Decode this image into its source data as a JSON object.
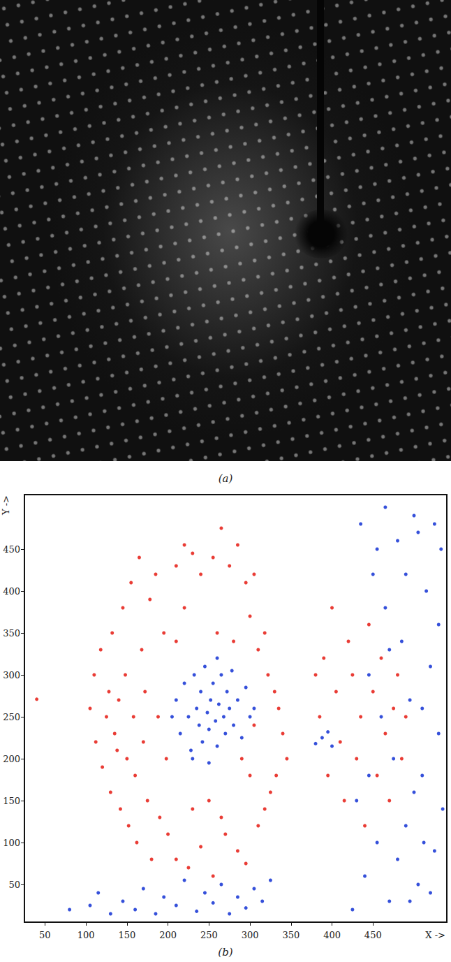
{
  "image_panel": {
    "caption": "(a)"
  },
  "chart_data": {
    "type": "scatter",
    "caption": "(b)",
    "x_label": "X ->",
    "y_label": "Y ->",
    "xlim": [
      25,
      540
    ],
    "ylim": [
      5,
      515
    ],
    "xticks": [
      50,
      100,
      150,
      200,
      250,
      300,
      350,
      400,
      450
    ],
    "yticks": [
      50,
      100,
      150,
      200,
      250,
      300,
      350,
      400,
      450
    ],
    "grid": false,
    "series": [
      {
        "color": "#e8322a",
        "marker": "circle",
        "x": [
          105,
          110,
          112,
          118,
          120,
          125,
          128,
          130,
          132,
          135,
          138,
          140,
          142,
          145,
          148,
          150,
          152,
          155,
          158,
          160,
          162,
          165,
          168,
          170,
          172,
          175,
          178,
          180,
          185,
          188,
          190,
          195,
          198,
          200,
          210,
          220,
          230,
          240,
          255,
          265,
          275,
          285,
          295,
          305,
          300,
          310,
          318,
          322,
          330,
          335,
          340,
          345,
          332,
          325,
          318,
          310,
          300,
          290,
          305,
          210,
          225,
          240,
          255,
          270,
          285,
          295,
          230,
          250,
          265,
          210,
          220,
          260,
          280,
          380,
          385,
          390,
          395,
          400,
          405,
          410,
          415,
          420,
          425,
          430,
          435,
          440,
          445,
          450,
          455,
          460,
          465,
          470,
          475,
          480,
          485,
          490,
          40
        ],
        "values": [
          260,
          300,
          220,
          330,
          190,
          250,
          280,
          160,
          350,
          230,
          210,
          270,
          140,
          380,
          300,
          200,
          120,
          410,
          250,
          180,
          100,
          440,
          330,
          220,
          280,
          150,
          390,
          80,
          420,
          250,
          130,
          350,
          200,
          110,
          430,
          455,
          445,
          420,
          440,
          475,
          430,
          455,
          410,
          420,
          370,
          330,
          350,
          300,
          280,
          260,
          230,
          200,
          180,
          160,
          140,
          120,
          180,
          200,
          240,
          80,
          70,
          95,
          60,
          110,
          90,
          75,
          140,
          150,
          130,
          340,
          380,
          350,
          340,
          300,
          250,
          320,
          180,
          380,
          280,
          220,
          150,
          340,
          300,
          200,
          250,
          120,
          360,
          280,
          180,
          320,
          230,
          150,
          260,
          300,
          200,
          250,
          271
        ]
      },
      {
        "color": "#2a47d8",
        "marker": "circle",
        "x": [
          205,
          210,
          215,
          220,
          225,
          228,
          232,
          235,
          238,
          240,
          242,
          245,
          248,
          250,
          252,
          255,
          258,
          260,
          262,
          265,
          268,
          270,
          272,
          275,
          278,
          280,
          285,
          290,
          295,
          300,
          305,
          260,
          230,
          250,
          80,
          105,
          115,
          130,
          145,
          160,
          170,
          185,
          195,
          210,
          220,
          235,
          245,
          255,
          265,
          275,
          285,
          295,
          305,
          315,
          325,
          380,
          388,
          395,
          400,
          425,
          430,
          435,
          440,
          445,
          450,
          455,
          460,
          465,
          470,
          475,
          480,
          485,
          490,
          495,
          500,
          505,
          510,
          515,
          520,
          525,
          530,
          533,
          535,
          470,
          480,
          490,
          500,
          510,
          520,
          525,
          530,
          512,
          505,
          495,
          455,
          445,
          465
        ],
        "values": [
          250,
          270,
          230,
          290,
          250,
          210,
          300,
          260,
          240,
          280,
          220,
          310,
          255,
          235,
          270,
          290,
          245,
          215,
          265,
          300,
          250,
          230,
          280,
          260,
          305,
          240,
          270,
          225,
          285,
          250,
          260,
          320,
          200,
          195,
          20,
          25,
          40,
          15,
          30,
          20,
          45,
          15,
          35,
          25,
          55,
          18,
          40,
          28,
          50,
          15,
          35,
          22,
          45,
          30,
          55,
          218,
          225,
          232,
          215,
          20,
          150,
          480,
          60,
          300,
          420,
          100,
          250,
          380,
          30,
          200,
          460,
          340,
          120,
          270,
          490,
          50,
          180,
          400,
          310,
          90,
          230,
          450,
          140,
          330,
          80,
          420,
          160,
          260,
          40,
          480,
          360,
          100,
          470,
          30,
          450,
          180,
          500
        ]
      }
    ]
  }
}
